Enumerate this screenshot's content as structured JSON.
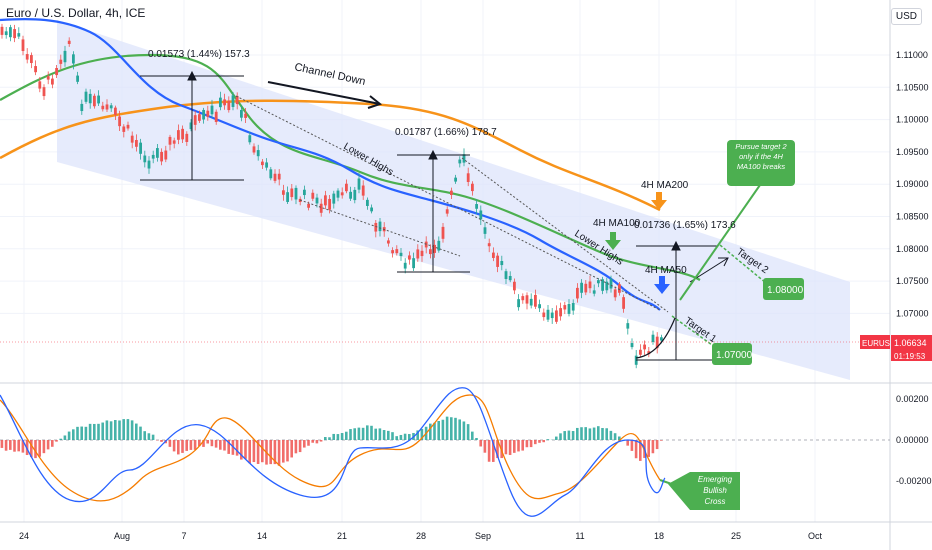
{
  "header": {
    "symbol_title": "Euro / U.S. Dollar, 4h, ICE",
    "currency": "USD"
  },
  "price_tag": {
    "symbol": "EURUSD",
    "price": "1.06634",
    "countdown": "01:19:53",
    "color": "#f23645"
  },
  "colors": {
    "channel_fill": "#dbe3fb",
    "ma50": "#2962ff",
    "ma100": "#4caf50",
    "ma200": "#f7931a",
    "candle_up": "#26a69a",
    "candle_down": "#ef5350",
    "macd_line": "#2962ff",
    "signal_line": "#f57c00",
    "callout_green": "#4caf50"
  },
  "chart_data": [
    {
      "type": "candlestick",
      "title": "Euro / U.S. Dollar, 4h, ICE",
      "x_ticks": [
        "24",
        "Aug",
        "7",
        "14",
        "21",
        "28",
        "Sep",
        "11",
        "18",
        "25",
        "Oct"
      ],
      "y_ticks": [
        "1.11000",
        "1.10500",
        "1.10000",
        "1.09500",
        "1.09000",
        "1.08500",
        "1.08000",
        "1.07500",
        "1.07000"
      ],
      "ylim": [
        1.0635,
        1.1135
      ],
      "last_price": 1.06634,
      "series": [
        {
          "name": "4H MA50",
          "x": [
            0,
            70,
            120,
            180,
            240,
            300,
            360,
            420,
            480,
            540,
            600,
            660
          ],
          "y": [
            1.111,
            1.1075,
            1.1025,
            1.0995,
            1.098,
            1.095,
            1.092,
            1.0895,
            1.0865,
            1.0835,
            1.08,
            1.0735
          ]
        },
        {
          "name": "4H MA100",
          "x": [
            0,
            70,
            150,
            240,
            300,
            360,
            420,
            480,
            540,
            600,
            700
          ],
          "y": [
            1.1,
            1.105,
            1.1075,
            1.1005,
            1.097,
            1.095,
            1.0925,
            1.0895,
            1.0845,
            1.0795,
            1.077
          ]
        },
        {
          "name": "4H MA200",
          "x": [
            0,
            80,
            160,
            240,
            320,
            400,
            460,
            520,
            580,
            650
          ],
          "y": [
            1.095,
            1.0995,
            1.1012,
            1.1023,
            1.102,
            1.1005,
            1.0985,
            1.0955,
            1.0915,
            1.0855
          ]
        }
      ],
      "annotations": [
        {
          "text": "0.01573 (1.44%) 157.3"
        },
        {
          "text": "0.01787 (1.66%) 178.7"
        },
        {
          "text": "0.01736 (1.65%) 173.6"
        },
        {
          "text": "Channel Down"
        },
        {
          "text": "Lower Highs"
        },
        {
          "text": "Lower Highs"
        },
        {
          "text": "4H MA200"
        },
        {
          "text": "4H MA100"
        },
        {
          "text": "4H MA50"
        },
        {
          "text": "Target 1"
        },
        {
          "text": "Target 2"
        },
        {
          "text": "1.07000"
        },
        {
          "text": "1.08000"
        },
        {
          "text": "Pursue target 2 only if the 4H MA100 breaks"
        }
      ]
    },
    {
      "type": "histogram",
      "title": "",
      "y_ticks": [
        "0.00200",
        "0.00000",
        "-0.00200"
      ],
      "ylim": [
        -0.0036,
        0.0034
      ],
      "annotations": [
        {
          "text": "Emerging Bullish Cross"
        }
      ]
    }
  ]
}
